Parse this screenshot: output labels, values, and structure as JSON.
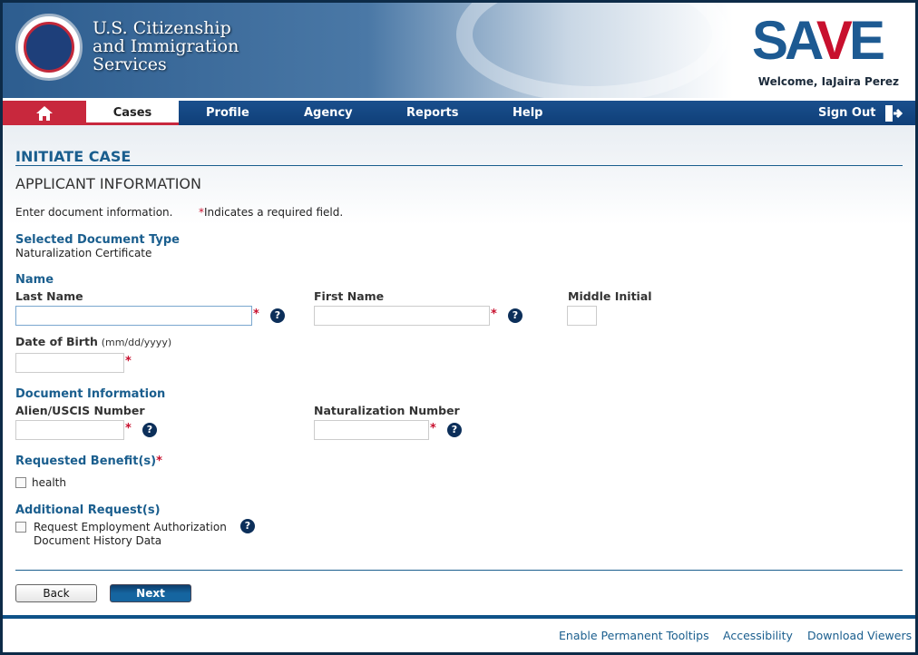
{
  "header": {
    "agency_line1": "U.S. Citizenship",
    "agency_line2": "and Immigration",
    "agency_line3": "Services",
    "logo": "SAVE",
    "welcome": "Welcome, IaJaira Perez"
  },
  "nav": {
    "home_icon": "home-icon",
    "items": [
      "Cases",
      "Profile",
      "Agency",
      "Reports",
      "Help"
    ],
    "active": "Cases",
    "sign_out": "Sign Out",
    "sign_out_icon": "exit-icon"
  },
  "page": {
    "title": "INITIATE CASE",
    "subtitle": "APPLICANT INFORMATION",
    "instructions": "Enter document information.",
    "required_note": "Indicates a required field.",
    "required_mark": "*"
  },
  "document_type": {
    "heading": "Selected Document Type",
    "value": "Naturalization Certificate"
  },
  "name": {
    "heading": "Name",
    "last_name": "Last Name",
    "first_name": "First Name",
    "middle_initial": "Middle Initial",
    "dob": "Date of Birth",
    "dob_format": "(mm/dd/yyyy)",
    "last_value": "",
    "first_value": "",
    "middle_value": "",
    "dob_value": ""
  },
  "document_info": {
    "heading": "Document Information",
    "alien": "Alien/USCIS Number",
    "naturalization": "Naturalization Number",
    "alien_value": "",
    "naturalization_value": ""
  },
  "benefits": {
    "heading": "Requested Benefit(s)",
    "options": [
      {
        "label": "health",
        "checked": false
      }
    ]
  },
  "additional": {
    "heading": "Additional Request(s)",
    "line1": "Request Employment Authorization",
    "line2": "Document History Data",
    "checked": false
  },
  "buttons": {
    "back": "Back",
    "next": "Next"
  },
  "help_glyph": "?",
  "footer": {
    "links": [
      "Enable Permanent Tooltips",
      "Accessibility",
      "Download Viewers"
    ]
  },
  "colors": {
    "brand_blue": "#1a5e8e",
    "nav_blue": "#0f3f78",
    "accent_red": "#c8283d"
  }
}
